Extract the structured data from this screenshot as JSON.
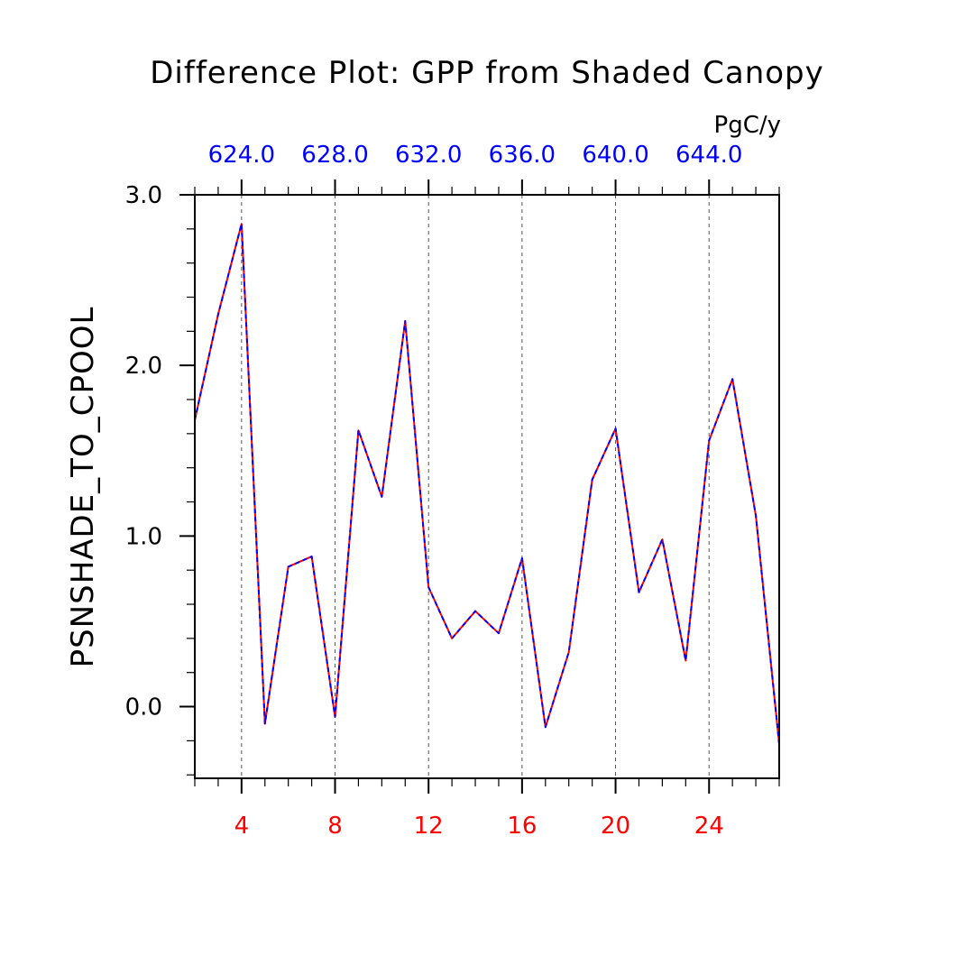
{
  "chart_data": {
    "type": "line",
    "title": "Difference Plot: GPP from Shaded Canopy",
    "ylabel": "PSNSHADE_TO_CPOOL",
    "top_axis_units": "PgC/y",
    "xlim": [
      2,
      27
    ],
    "ylim": [
      -0.42,
      3.0
    ],
    "y_major_ticks": [
      0.0,
      1.0,
      2.0,
      3.0
    ],
    "y_tick_labels": [
      "0.0",
      "1.0",
      "2.0",
      "3.0"
    ],
    "x_major_ticks": [
      4,
      8,
      12,
      16,
      20,
      24
    ],
    "x_bottom_tick_labels": [
      "4",
      "8",
      "12",
      "16",
      "20",
      "24"
    ],
    "x_top_tick_labels": [
      "624.0",
      "628.0",
      "632.0",
      "636.0",
      "640.0",
      "644.0"
    ],
    "grid": "vertical dashed at x major ticks",
    "x": [
      2,
      3,
      4,
      5,
      6,
      7,
      8,
      9,
      10,
      11,
      12,
      13,
      14,
      15,
      16,
      17,
      18,
      19,
      20,
      21,
      22,
      23,
      24,
      25,
      26,
      27
    ],
    "series": [
      {
        "values": [
          1.68,
          2.3,
          2.83,
          -0.1,
          0.82,
          0.88,
          -0.06,
          1.62,
          1.23,
          2.26,
          0.7,
          0.4,
          0.56,
          0.43,
          0.87,
          -0.12,
          0.32,
          1.33,
          1.63,
          0.67,
          0.98,
          0.27,
          1.56,
          1.92,
          1.12,
          -0.22
        ],
        "color": "#ff0000",
        "style": "solid"
      },
      {
        "values": [
          1.68,
          2.3,
          2.83,
          -0.1,
          0.82,
          0.88,
          -0.06,
          1.62,
          1.23,
          2.26,
          0.7,
          0.4,
          0.56,
          0.43,
          0.87,
          -0.12,
          0.32,
          1.33,
          1.63,
          0.67,
          0.98,
          0.27,
          1.56,
          1.92,
          1.12,
          -0.22
        ],
        "color": "#0000ff",
        "style": "dashed"
      }
    ]
  }
}
